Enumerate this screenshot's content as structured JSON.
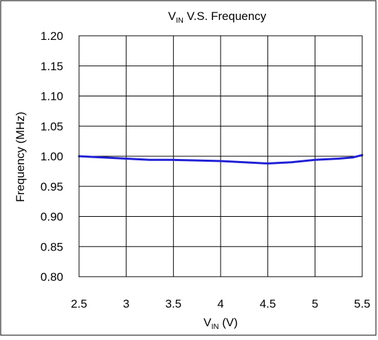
{
  "chart_data": {
    "type": "line",
    "title": {
      "main": "V",
      "sub": "IN",
      "rest": " V.S. Frequency"
    },
    "xlabel": {
      "main": "V",
      "sub": "IN",
      "rest": " (V)"
    },
    "ylabel": "Frequency (MHz)",
    "xlim": [
      2.5,
      5.5
    ],
    "ylim": [
      0.8,
      1.2
    ],
    "x_ticks": [
      "2.5",
      "3",
      "3.5",
      "4",
      "4.5",
      "5",
      "5.5"
    ],
    "x_tick_values": [
      2.5,
      3.0,
      3.5,
      4.0,
      4.5,
      5.0,
      5.5
    ],
    "y_ticks": [
      "1.20",
      "1.15",
      "1.10",
      "1.05",
      "1.00",
      "0.95",
      "0.90",
      "0.85",
      "0.80"
    ],
    "y_tick_values": [
      1.2,
      1.15,
      1.1,
      1.05,
      1.0,
      0.95,
      0.9,
      0.85,
      0.8
    ],
    "grid": true,
    "series": [
      {
        "color": "#1f1fd6",
        "x": [
          2.5,
          2.75,
          3.0,
          3.25,
          3.5,
          3.75,
          4.0,
          4.25,
          4.5,
          4.75,
          5.0,
          5.25,
          5.4,
          5.5
        ],
        "y": [
          1.0,
          0.998,
          0.996,
          0.994,
          0.994,
          0.993,
          0.992,
          0.99,
          0.988,
          0.99,
          0.994,
          0.996,
          0.998,
          1.002
        ]
      }
    ]
  }
}
